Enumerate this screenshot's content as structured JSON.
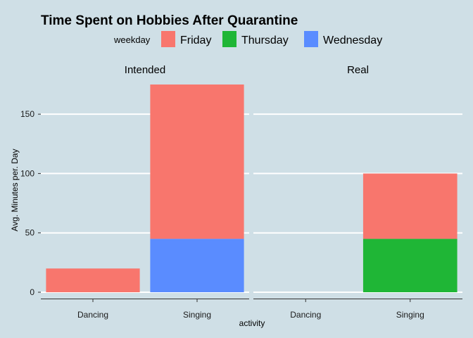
{
  "chart_data": {
    "type": "bar",
    "stacked": true,
    "faceted": true,
    "title": "Time Spent on Hobbies After Quarantine",
    "xlabel": "activity",
    "ylabel": "Avg. Minutes per. Day",
    "ylim": [
      0,
      175
    ],
    "yticks": [
      0,
      50,
      100,
      150
    ],
    "grid": "horizontal",
    "legend": {
      "title": "weekday",
      "position": "top",
      "entries": [
        {
          "name": "Friday",
          "color": "#f8766d"
        },
        {
          "name": "Thursday",
          "color": "#1fb636"
        },
        {
          "name": "Wednesday",
          "color": "#5a8cff"
        }
      ]
    },
    "categories": [
      "Dancing",
      "Singing"
    ],
    "facets": [
      {
        "label": "Intended",
        "series": [
          {
            "name": "Wednesday",
            "values": [
              0,
              45
            ]
          },
          {
            "name": "Thursday",
            "values": [
              0,
              0
            ]
          },
          {
            "name": "Friday",
            "values": [
              20,
              130
            ]
          }
        ]
      },
      {
        "label": "Real",
        "series": [
          {
            "name": "Wednesday",
            "values": [
              0,
              0
            ]
          },
          {
            "name": "Thursday",
            "values": [
              0,
              45
            ]
          },
          {
            "name": "Friday",
            "values": [
              0,
              55
            ]
          }
        ]
      }
    ]
  }
}
